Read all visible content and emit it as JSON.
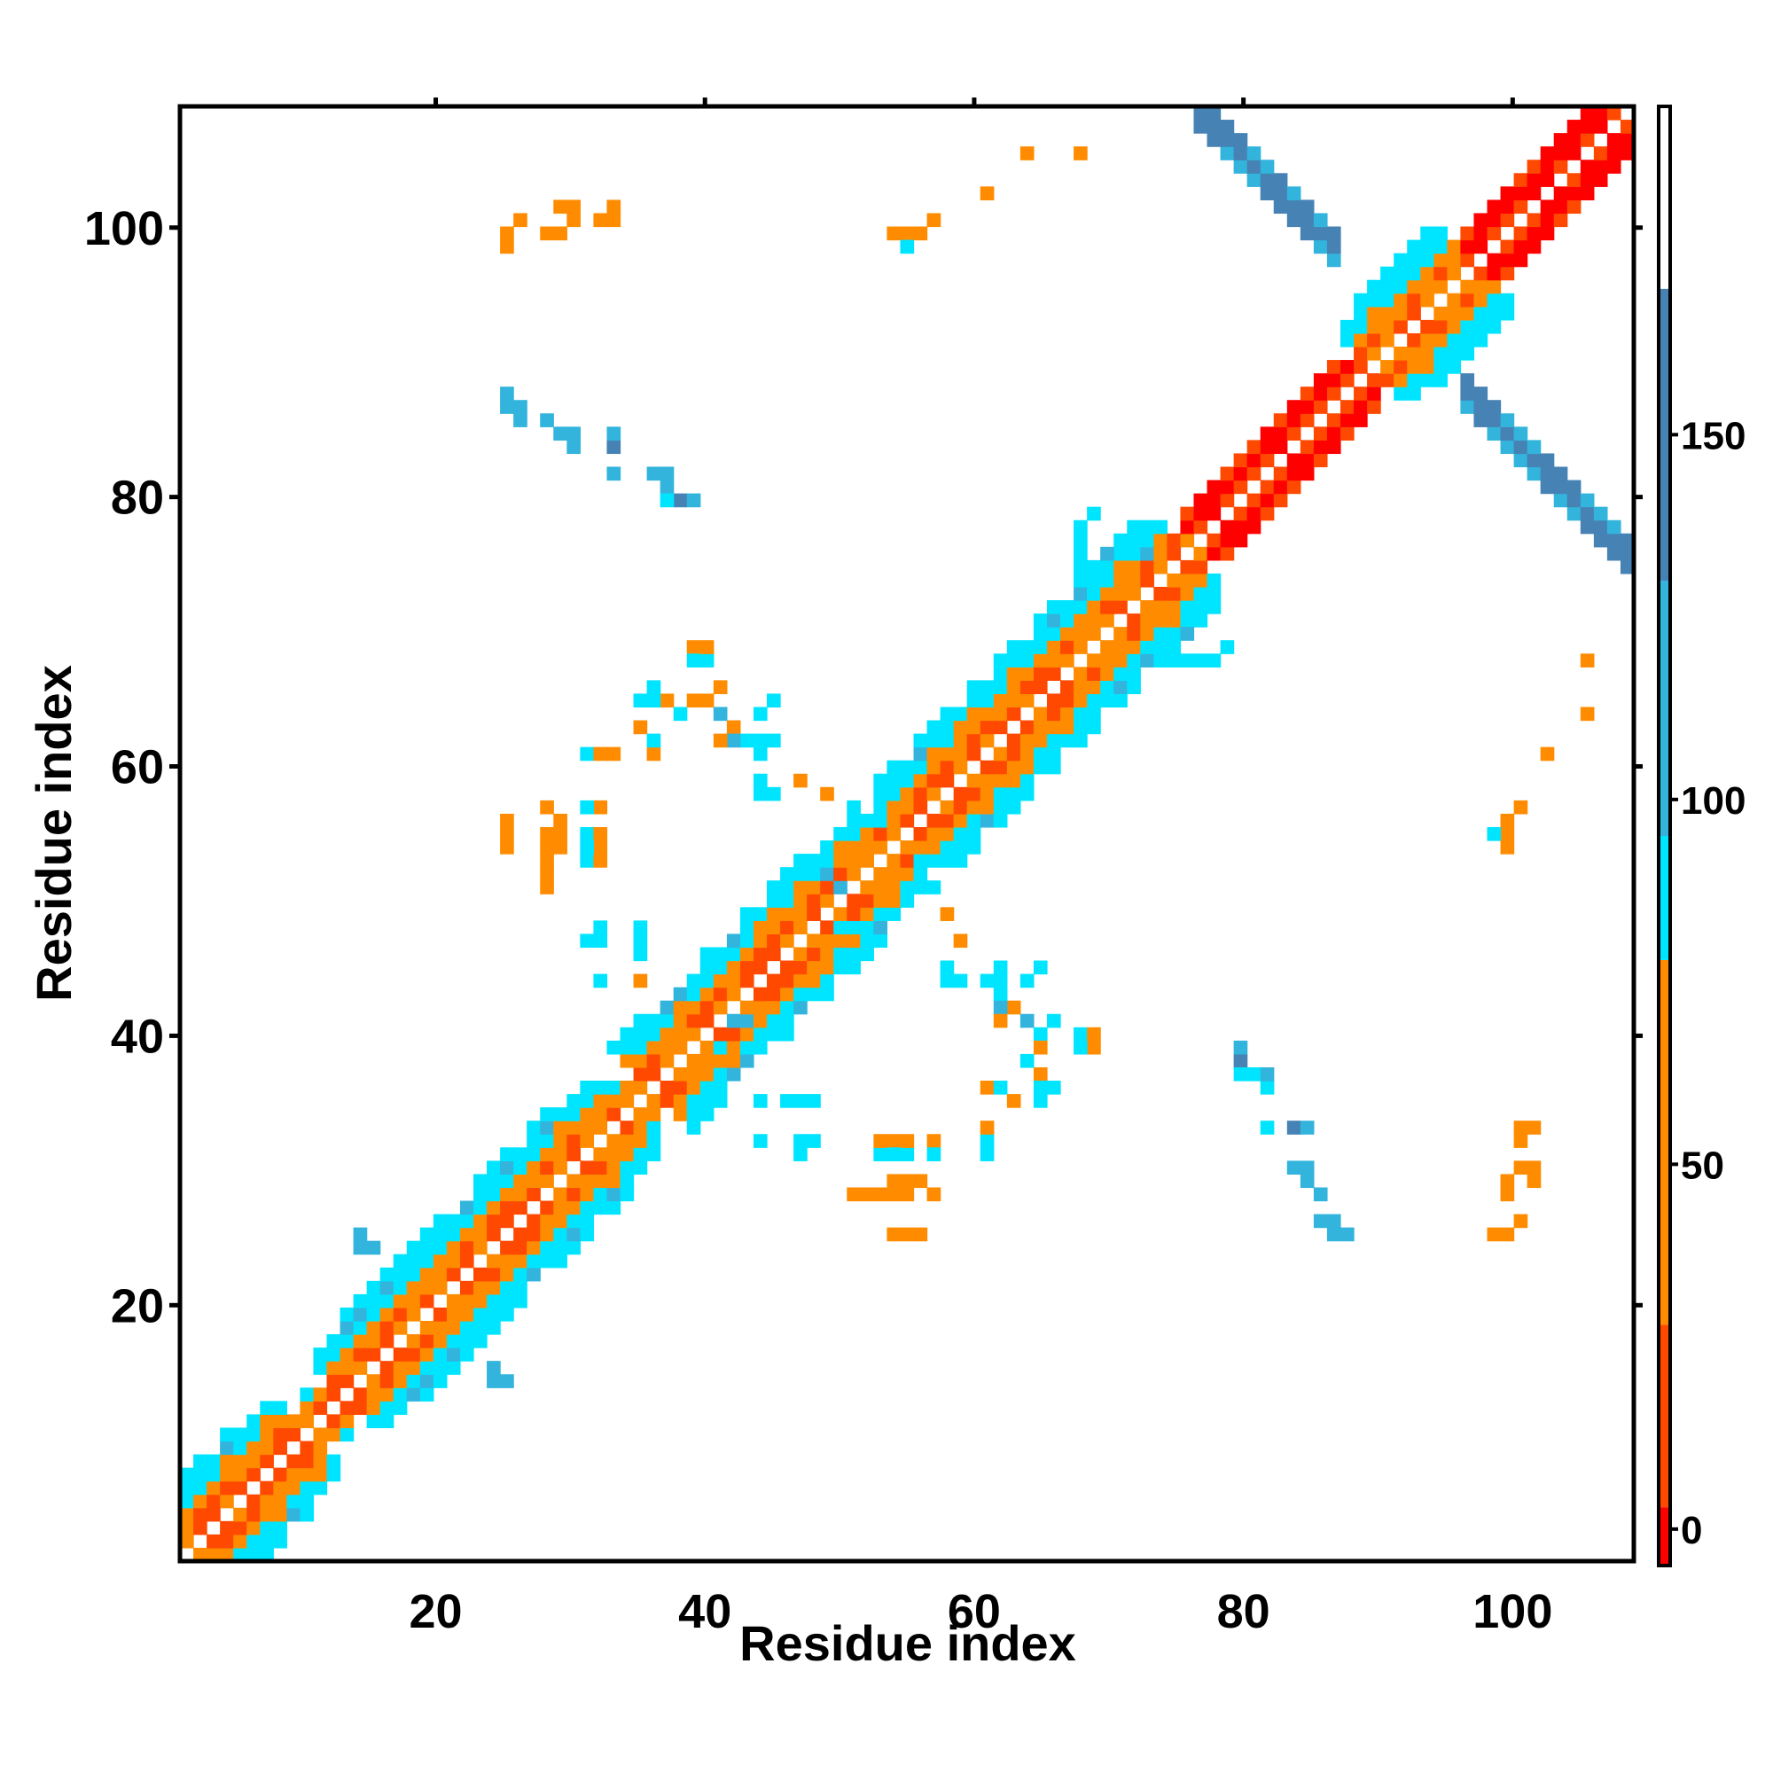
{
  "chart_data": {
    "type": "heatmap",
    "title": "",
    "xlabel": "Residue index",
    "ylabel": "Residue index",
    "xlim": [
      1,
      109
    ],
    "ylim": [
      1,
      109
    ],
    "x_ticks": [
      20,
      40,
      60,
      80,
      100
    ],
    "y_ticks": [
      20,
      40,
      60,
      80,
      100
    ],
    "colorbar": {
      "range": [
        -5,
        195
      ],
      "ticks": [
        0,
        50,
        100,
        150
      ],
      "bands": [
        {
          "from": -5,
          "to": 3,
          "color": "#ff0000"
        },
        {
          "from": 3,
          "to": 28,
          "color": "#ff4800"
        },
        {
          "from": 28,
          "to": 78,
          "color": "#ff8c00"
        },
        {
          "from": 78,
          "to": 95,
          "color": "#00e5ff"
        },
        {
          "from": 95,
          "to": 130,
          "color": "#32b4dc"
        },
        {
          "from": 130,
          "to": 170,
          "color": "#4682b4"
        },
        {
          "from": 170,
          "to": 195,
          "color": "#ffffff"
        }
      ]
    },
    "colors": {
      "red": "#ff0000",
      "red_orange": "#ff4800",
      "orange": "#ff8c00",
      "cyan": "#00e5ff",
      "light_blue": "#32b4dc",
      "steel_blue": "#4682b4"
    },
    "helix_regions": [
      [
        2,
        10
      ],
      [
        13,
        34
      ],
      [
        36,
        54
      ],
      [
        55,
        76
      ],
      [
        90,
        98
      ]
    ],
    "parallel_regions": [
      [
        77,
        89
      ],
      [
        98,
        109
      ]
    ],
    "antiparallel_sheets": [
      {
        "i_start": 77,
        "i_end": 87,
        "j_start": 109,
        "j_end": 99,
        "value": 150
      },
      {
        "i_start": 97,
        "i_end": 109,
        "j_start": 88,
        "j_end": 76,
        "value": 150
      }
    ],
    "cells": [
      [
        25,
        100,
        50
      ],
      [
        26,
        101,
        40
      ],
      [
        29,
        102,
        30
      ],
      [
        30,
        102,
        40
      ],
      [
        33,
        102,
        40
      ],
      [
        55,
        100,
        60
      ],
      [
        56,
        100,
        70
      ],
      [
        57,
        101,
        50
      ],
      [
        61,
        103,
        60
      ],
      [
        64,
        106,
        60
      ],
      [
        68,
        106,
        60
      ],
      [
        25,
        87,
        120
      ],
      [
        26,
        86,
        120
      ],
      [
        29,
        85,
        120
      ],
      [
        30,
        84,
        120
      ],
      [
        33,
        84,
        130
      ],
      [
        33,
        82,
        120
      ],
      [
        36,
        82,
        120
      ],
      [
        37,
        81,
        120
      ],
      [
        38,
        80,
        150
      ],
      [
        25,
        55,
        60
      ],
      [
        25,
        54,
        60
      ],
      [
        28,
        55,
        70
      ],
      [
        29,
        56,
        70
      ],
      [
        29,
        54,
        70
      ],
      [
        28,
        53,
        70
      ],
      [
        28,
        52,
        70
      ],
      [
        28,
        51,
        70
      ],
      [
        31,
        55,
        90
      ],
      [
        32,
        55,
        40
      ],
      [
        31,
        53,
        90
      ],
      [
        32,
        53,
        50
      ],
      [
        31,
        61,
        90
      ],
      [
        32,
        61,
        60
      ],
      [
        35,
        63,
        70
      ],
      [
        35,
        65,
        90
      ],
      [
        39,
        69,
        40
      ],
      [
        39,
        68,
        90
      ],
      [
        37,
        65,
        30
      ],
      [
        38,
        64,
        90
      ],
      [
        40,
        65,
        40
      ],
      [
        41,
        66,
        70
      ],
      [
        42,
        63,
        50
      ],
      [
        44,
        62,
        90
      ],
      [
        45,
        65,
        90
      ],
      [
        45,
        62,
        90
      ],
      [
        44,
        58,
        90
      ],
      [
        45,
        58,
        90
      ],
      [
        49,
        58,
        60
      ],
      [
        31,
        47,
        90
      ],
      [
        32,
        47,
        90
      ],
      [
        35,
        47,
        90
      ],
      [
        32,
        44,
        90
      ],
      [
        35,
        44,
        70
      ],
      [
        59,
        47,
        60
      ],
      [
        59,
        44,
        90
      ],
      [
        61,
        44,
        90
      ],
      [
        62,
        43,
        90
      ],
      [
        62,
        42,
        120
      ],
      [
        64,
        44,
        90
      ],
      [
        62,
        41,
        60
      ],
      [
        64,
        41,
        120
      ],
      [
        66,
        41,
        90
      ],
      [
        65,
        40,
        90
      ],
      [
        65,
        39,
        30
      ],
      [
        68,
        40,
        90
      ],
      [
        69,
        40,
        50
      ],
      [
        61,
        36,
        70
      ],
      [
        62,
        36,
        90
      ],
      [
        65,
        36,
        90
      ],
      [
        66,
        36,
        90
      ],
      [
        61,
        33,
        60
      ],
      [
        61,
        32,
        90
      ],
      [
        54,
        32,
        40
      ],
      [
        55,
        32,
        40
      ],
      [
        54,
        31,
        90
      ],
      [
        57,
        32,
        40
      ],
      [
        57,
        31,
        90
      ],
      [
        53,
        28,
        60
      ],
      [
        54,
        28,
        70
      ],
      [
        55,
        29,
        70
      ],
      [
        56,
        29,
        70
      ],
      [
        57,
        28,
        50
      ],
      [
        55,
        25,
        40
      ],
      [
        56,
        25,
        50
      ],
      [
        44,
        35,
        90
      ],
      [
        46,
        35,
        90
      ],
      [
        48,
        35,
        90
      ],
      [
        44,
        32,
        90
      ],
      [
        47,
        32,
        90
      ],
      [
        48,
        32,
        90
      ],
      [
        47,
        31,
        90
      ],
      [
        80,
        39,
        120
      ],
      [
        80,
        37,
        90
      ],
      [
        81,
        37,
        90
      ],
      [
        82,
        37,
        120
      ],
      [
        82,
        36,
        90
      ],
      [
        82,
        33,
        90
      ],
      [
        85,
        33,
        120
      ],
      [
        85,
        30,
        120
      ],
      [
        86,
        28,
        120
      ],
      [
        87,
        26,
        120
      ],
      [
        88,
        25,
        120
      ],
      [
        101,
        33,
        40
      ],
      [
        101,
        32,
        40
      ],
      [
        101,
        30,
        60
      ],
      [
        100,
        29,
        40
      ],
      [
        102,
        29,
        40
      ],
      [
        100,
        28,
        60
      ],
      [
        99,
        25,
        40
      ],
      [
        100,
        25,
        40
      ],
      [
        101,
        26,
        40
      ],
      [
        106,
        68,
        60
      ],
      [
        106,
        64,
        40
      ],
      [
        103,
        61,
        60
      ],
      [
        101,
        57,
        40
      ],
      [
        100,
        56,
        60
      ],
      [
        99,
        55,
        90
      ],
      [
        100,
        54,
        60
      ],
      [
        14,
        24,
        120
      ],
      [
        15,
        24,
        120
      ],
      [
        25,
        14,
        120
      ],
      [
        75,
        68,
        90
      ],
      [
        76,
        68,
        90
      ],
      [
        77,
        68,
        90
      ],
      [
        78,
        68,
        90
      ],
      [
        76,
        72,
        90
      ],
      [
        77,
        72,
        90
      ],
      [
        73,
        76,
        120
      ],
      [
        71,
        77,
        90
      ],
      [
        72,
        78,
        90
      ],
      [
        69,
        79,
        90
      ],
      [
        70,
        76,
        120
      ],
      [
        50,
        48,
        90
      ],
      [
        51,
        48,
        90
      ],
      [
        52,
        48,
        90
      ],
      [
        53,
        47,
        90
      ],
      [
        53,
        48,
        120
      ],
      [
        49,
        54,
        90
      ],
      [
        49,
        52,
        120
      ],
      [
        50,
        51,
        120
      ],
      [
        42,
        41,
        120
      ],
      [
        43,
        41,
        120
      ],
      [
        41,
        39,
        90
      ]
    ]
  }
}
